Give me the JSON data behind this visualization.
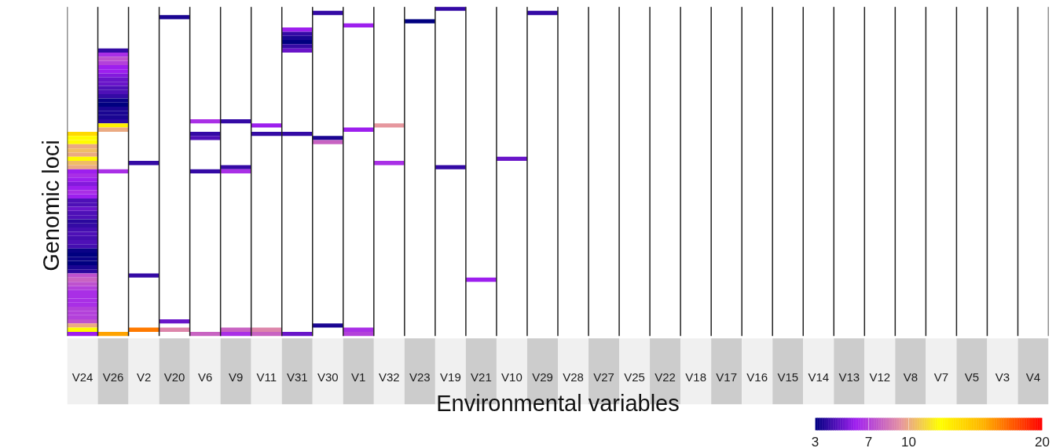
{
  "chart_data": {
    "type": "heatmap",
    "xlabel": "Environmental variables",
    "ylabel": "Genomic loci",
    "categories": [
      "V24",
      "V26",
      "V2",
      "V20",
      "V6",
      "V9",
      "V11",
      "V31",
      "V30",
      "V1",
      "V32",
      "V23",
      "V19",
      "V21",
      "V10",
      "V29",
      "V28",
      "V27",
      "V25",
      "V22",
      "V18",
      "V17",
      "V16",
      "V15",
      "V14",
      "V13",
      "V12",
      "V8",
      "V7",
      "V5",
      "V3",
      "V4"
    ],
    "y_categories": [
      null,
      null,
      null,
      null,
      null,
      null,
      null,
      null,
      null,
      null,
      null,
      null,
      null,
      null,
      null,
      null,
      null,
      null,
      null,
      null,
      null,
      null,
      null,
      null,
      null,
      null,
      null,
      null,
      null,
      null,
      null,
      null,
      null,
      null,
      null,
      null,
      null,
      null,
      null,
      null,
      null,
      null,
      null,
      null,
      null,
      null,
      null,
      null,
      null,
      null,
      null,
      null,
      null,
      null,
      null,
      null,
      null,
      null,
      null,
      null,
      null,
      null,
      null,
      null,
      null,
      null,
      null,
      null,
      null,
      null,
      null,
      null,
      null,
      null,
      null,
      null,
      null,
      null,
      null
    ],
    "tick_labels": "x",
    "clim": [
      3,
      20
    ],
    "cticks": [
      3,
      7,
      10,
      20
    ],
    "cells": [
      [
        null,
        null,
        null,
        null,
        null,
        null,
        null,
        null,
        null,
        null,
        null,
        null,
        4,
        null,
        null,
        null,
        null,
        null,
        null,
        null,
        null,
        null,
        null,
        null,
        null,
        null,
        null,
        null,
        null,
        null,
        null,
        null
      ],
      [
        null,
        null,
        null,
        null,
        null,
        null,
        null,
        null,
        4,
        null,
        null,
        null,
        null,
        null,
        null,
        4,
        null,
        null,
        null,
        null,
        null,
        null,
        null,
        null,
        null,
        null,
        null,
        null,
        null,
        null,
        null,
        null
      ],
      [
        null,
        null,
        null,
        3.5,
        null,
        null,
        null,
        null,
        null,
        null,
        null,
        null,
        null,
        null,
        null,
        null,
        null,
        null,
        null,
        null,
        null,
        null,
        null,
        null,
        null,
        null,
        null,
        null,
        null,
        null,
        null,
        null
      ],
      [
        null,
        null,
        null,
        null,
        null,
        null,
        null,
        null,
        null,
        null,
        null,
        3,
        null,
        null,
        null,
        null,
        null,
        null,
        null,
        null,
        null,
        null,
        null,
        null,
        null,
        null,
        null,
        null,
        null,
        null,
        null,
        null
      ],
      [
        null,
        null,
        null,
        null,
        null,
        null,
        null,
        null,
        null,
        6,
        null,
        null,
        null,
        null,
        null,
        null,
        null,
        null,
        null,
        null,
        null,
        null,
        null,
        null,
        null,
        null,
        null,
        null,
        null,
        null,
        null,
        null
      ],
      [
        null,
        null,
        null,
        null,
        null,
        null,
        null,
        6,
        null,
        null,
        null,
        null,
        null,
        null,
        null,
        null,
        null,
        null,
        null,
        null,
        null,
        null,
        null,
        null,
        null,
        null,
        null,
        null,
        null,
        null,
        null,
        null
      ],
      [
        null,
        null,
        null,
        null,
        null,
        null,
        null,
        4,
        null,
        null,
        null,
        null,
        null,
        null,
        null,
        null,
        null,
        null,
        null,
        null,
        null,
        null,
        null,
        null,
        null,
        null,
        null,
        null,
        null,
        null,
        null,
        null
      ],
      [
        null,
        null,
        null,
        null,
        null,
        null,
        null,
        3.5,
        null,
        null,
        null,
        null,
        null,
        null,
        null,
        null,
        null,
        null,
        null,
        null,
        null,
        null,
        null,
        null,
        null,
        null,
        null,
        null,
        null,
        null,
        null,
        null
      ],
      [
        null,
        null,
        null,
        null,
        null,
        null,
        null,
        3,
        null,
        null,
        null,
        null,
        null,
        null,
        null,
        null,
        null,
        null,
        null,
        null,
        null,
        null,
        null,
        null,
        null,
        null,
        null,
        null,
        null,
        null,
        null,
        null
      ],
      [
        null,
        null,
        null,
        null,
        null,
        null,
        null,
        4,
        null,
        null,
        null,
        null,
        null,
        null,
        null,
        null,
        null,
        null,
        null,
        null,
        null,
        null,
        null,
        null,
        null,
        null,
        null,
        null,
        null,
        null,
        null,
        null
      ],
      [
        null,
        4,
        null,
        null,
        null,
        null,
        null,
        5,
        null,
        null,
        null,
        null,
        null,
        null,
        null,
        null,
        null,
        null,
        null,
        null,
        null,
        null,
        null,
        null,
        null,
        null,
        null,
        null,
        null,
        null,
        null,
        null
      ],
      [
        null,
        6.5,
        null,
        null,
        null,
        null,
        null,
        null,
        null,
        null,
        null,
        null,
        null,
        null,
        null,
        null,
        null,
        null,
        null,
        null,
        null,
        null,
        null,
        null,
        null,
        null,
        null,
        null,
        null,
        null,
        null,
        null
      ],
      [
        null,
        7.5,
        null,
        null,
        null,
        null,
        null,
        null,
        null,
        null,
        null,
        null,
        null,
        null,
        null,
        null,
        null,
        null,
        null,
        null,
        null,
        null,
        null,
        null,
        null,
        null,
        null,
        null,
        null,
        null,
        null,
        null
      ],
      [
        null,
        7,
        null,
        null,
        null,
        null,
        null,
        null,
        null,
        null,
        null,
        null,
        null,
        null,
        null,
        null,
        null,
        null,
        null,
        null,
        null,
        null,
        null,
        null,
        null,
        null,
        null,
        null,
        null,
        null,
        null,
        null
      ],
      [
        null,
        6,
        null,
        null,
        null,
        null,
        null,
        null,
        null,
        null,
        null,
        null,
        null,
        null,
        null,
        null,
        null,
        null,
        null,
        null,
        null,
        null,
        null,
        null,
        null,
        null,
        null,
        null,
        null,
        null,
        null,
        null
      ],
      [
        null,
        6,
        null,
        null,
        null,
        null,
        null,
        null,
        null,
        null,
        null,
        null,
        null,
        null,
        null,
        null,
        null,
        null,
        null,
        null,
        null,
        null,
        null,
        null,
        null,
        null,
        null,
        null,
        null,
        null,
        null,
        null
      ],
      [
        null,
        5.5,
        null,
        null,
        null,
        null,
        null,
        null,
        null,
        null,
        null,
        null,
        null,
        null,
        null,
        null,
        null,
        null,
        null,
        null,
        null,
        null,
        null,
        null,
        null,
        null,
        null,
        null,
        null,
        null,
        null,
        null
      ],
      [
        null,
        5,
        null,
        null,
        null,
        null,
        null,
        null,
        null,
        null,
        null,
        null,
        null,
        null,
        null,
        null,
        null,
        null,
        null,
        null,
        null,
        null,
        null,
        null,
        null,
        null,
        null,
        null,
        null,
        null,
        null,
        null
      ],
      [
        null,
        5,
        null,
        null,
        null,
        null,
        null,
        null,
        null,
        null,
        null,
        null,
        null,
        null,
        null,
        null,
        null,
        null,
        null,
        null,
        null,
        null,
        null,
        null,
        null,
        null,
        null,
        null,
        null,
        null,
        null,
        null
      ],
      [
        null,
        4.5,
        null,
        null,
        null,
        null,
        null,
        null,
        null,
        null,
        null,
        null,
        null,
        null,
        null,
        null,
        null,
        null,
        null,
        null,
        null,
        null,
        null,
        null,
        null,
        null,
        null,
        null,
        null,
        null,
        null,
        null
      ],
      [
        null,
        4.5,
        null,
        null,
        null,
        null,
        null,
        null,
        null,
        null,
        null,
        null,
        null,
        null,
        null,
        null,
        null,
        null,
        null,
        null,
        null,
        null,
        null,
        null,
        null,
        null,
        null,
        null,
        null,
        null,
        null,
        null
      ],
      [
        null,
        4,
        null,
        null,
        null,
        null,
        null,
        null,
        null,
        null,
        null,
        null,
        null,
        null,
        null,
        null,
        null,
        null,
        null,
        null,
        null,
        null,
        null,
        null,
        null,
        null,
        null,
        null,
        null,
        null,
        null,
        null
      ],
      [
        null,
        3.2,
        null,
        null,
        null,
        null,
        null,
        null,
        null,
        null,
        null,
        null,
        null,
        null,
        null,
        null,
        null,
        null,
        null,
        null,
        null,
        null,
        null,
        null,
        null,
        null,
        null,
        null,
        null,
        null,
        null,
        null
      ],
      [
        null,
        3,
        null,
        null,
        null,
        null,
        null,
        null,
        null,
        null,
        null,
        null,
        null,
        null,
        null,
        null,
        null,
        null,
        null,
        null,
        null,
        null,
        null,
        null,
        null,
        null,
        null,
        null,
        null,
        null,
        null,
        null
      ],
      [
        null,
        3.5,
        null,
        null,
        null,
        null,
        null,
        null,
        null,
        null,
        null,
        null,
        null,
        null,
        null,
        null,
        null,
        null,
        null,
        null,
        null,
        null,
        null,
        null,
        null,
        null,
        null,
        null,
        null,
        null,
        null,
        null
      ],
      [
        null,
        3.5,
        null,
        null,
        null,
        null,
        null,
        null,
        null,
        null,
        null,
        null,
        null,
        null,
        null,
        null,
        null,
        null,
        null,
        null,
        null,
        null,
        null,
        null,
        null,
        null,
        null,
        null,
        null,
        null,
        null,
        null
      ],
      [
        null,
        3.5,
        null,
        null,
        null,
        null,
        null,
        null,
        null,
        null,
        null,
        null,
        null,
        null,
        null,
        null,
        null,
        null,
        null,
        null,
        null,
        null,
        null,
        null,
        null,
        null,
        null,
        null,
        null,
        null,
        null,
        null
      ],
      [
        null,
        3.8,
        null,
        null,
        6.5,
        4,
        null,
        null,
        null,
        null,
        null,
        null,
        null,
        null,
        null,
        null,
        null,
        null,
        null,
        null,
        null,
        null,
        null,
        null,
        null,
        null,
        null,
        null,
        null,
        null,
        null,
        null
      ],
      [
        null,
        13,
        null,
        null,
        null,
        null,
        6,
        null,
        null,
        null,
        9.5,
        null,
        null,
        null,
        null,
        null,
        null,
        null,
        null,
        null,
        null,
        null,
        null,
        null,
        null,
        null,
        null,
        null,
        null,
        null,
        null,
        null
      ],
      [
        null,
        10,
        null,
        null,
        null,
        null,
        null,
        null,
        null,
        6,
        null,
        null,
        null,
        null,
        null,
        null,
        null,
        null,
        null,
        null,
        null,
        null,
        null,
        null,
        null,
        null,
        null,
        null,
        null,
        null,
        null,
        null
      ],
      [
        14,
        null,
        null,
        null,
        4,
        null,
        4,
        4,
        null,
        null,
        null,
        null,
        null,
        null,
        null,
        null,
        null,
        null,
        null,
        null,
        null,
        null,
        null,
        null,
        null,
        null,
        null,
        null,
        null,
        null,
        null,
        null
      ],
      [
        12.5,
        null,
        null,
        null,
        4.5,
        null,
        null,
        null,
        3.5,
        null,
        null,
        null,
        null,
        null,
        null,
        null,
        null,
        null,
        null,
        null,
        null,
        null,
        null,
        null,
        null,
        null,
        null,
        null,
        null,
        null,
        null,
        null
      ],
      [
        12.5,
        null,
        null,
        null,
        null,
        null,
        null,
        null,
        8,
        null,
        null,
        null,
        null,
        null,
        null,
        null,
        null,
        null,
        null,
        null,
        null,
        null,
        null,
        null,
        null,
        null,
        null,
        null,
        null,
        null,
        null,
        null
      ],
      [
        10,
        null,
        null,
        null,
        null,
        null,
        null,
        null,
        null,
        null,
        null,
        null,
        null,
        null,
        null,
        null,
        null,
        null,
        null,
        null,
        null,
        null,
        null,
        null,
        null,
        null,
        null,
        null,
        null,
        null,
        null,
        null
      ],
      [
        10.5,
        null,
        null,
        null,
        null,
        null,
        null,
        null,
        null,
        null,
        null,
        null,
        null,
        null,
        null,
        null,
        null,
        null,
        null,
        null,
        null,
        null,
        null,
        null,
        null,
        null,
        null,
        null,
        null,
        null,
        null,
        null
      ],
      [
        10,
        null,
        null,
        null,
        null,
        null,
        null,
        null,
        null,
        null,
        null,
        null,
        null,
        null,
        null,
        null,
        null,
        null,
        null,
        null,
        null,
        null,
        null,
        null,
        null,
        null,
        null,
        null,
        null,
        null,
        null,
        null
      ],
      [
        12.5,
        null,
        null,
        null,
        null,
        null,
        null,
        null,
        null,
        null,
        null,
        null,
        null,
        null,
        5,
        null,
        null,
        null,
        null,
        null,
        null,
        null,
        null,
        null,
        null,
        null,
        null,
        null,
        null,
        null,
        null,
        null
      ],
      [
        10.5,
        null,
        4,
        null,
        null,
        null,
        null,
        null,
        null,
        null,
        6.5,
        null,
        null,
        null,
        null,
        null,
        null,
        null,
        null,
        null,
        null,
        null,
        null,
        null,
        null,
        null,
        null,
        null,
        null,
        null,
        null,
        null
      ],
      [
        10,
        null,
        null,
        null,
        null,
        4,
        null,
        null,
        null,
        null,
        null,
        null,
        4,
        null,
        null,
        null,
        null,
        null,
        null,
        null,
        null,
        null,
        null,
        null,
        null,
        null,
        null,
        null,
        null,
        null,
        null,
        null
      ],
      [
        6,
        6.5,
        null,
        null,
        4,
        6.5,
        null,
        null,
        null,
        null,
        null,
        null,
        null,
        null,
        null,
        null,
        null,
        null,
        null,
        null,
        null,
        null,
        null,
        null,
        null,
        null,
        null,
        null,
        null,
        null,
        null,
        null
      ],
      [
        6.5,
        null,
        null,
        null,
        null,
        null,
        null,
        null,
        null,
        null,
        null,
        null,
        null,
        null,
        null,
        null,
        null,
        null,
        null,
        null,
        null,
        null,
        null,
        null,
        null,
        null,
        null,
        null,
        null,
        null,
        null,
        null
      ],
      [
        6,
        null,
        null,
        null,
        null,
        null,
        null,
        null,
        null,
        null,
        null,
        null,
        null,
        null,
        null,
        null,
        null,
        null,
        null,
        null,
        null,
        null,
        null,
        null,
        null,
        null,
        null,
        null,
        null,
        null,
        null,
        null
      ],
      [
        5.5,
        null,
        null,
        null,
        null,
        null,
        null,
        null,
        null,
        null,
        null,
        null,
        null,
        null,
        null,
        null,
        null,
        null,
        null,
        null,
        null,
        null,
        null,
        null,
        null,
        null,
        null,
        null,
        null,
        null,
        null,
        null
      ],
      [
        6,
        null,
        null,
        null,
        null,
        null,
        null,
        null,
        null,
        null,
        null,
        null,
        null,
        null,
        null,
        null,
        null,
        null,
        null,
        null,
        null,
        null,
        null,
        null,
        null,
        null,
        null,
        null,
        null,
        null,
        null,
        null
      ],
      [
        6.5,
        null,
        null,
        null,
        null,
        null,
        null,
        null,
        null,
        null,
        null,
        null,
        null,
        null,
        null,
        null,
        null,
        null,
        null,
        null,
        null,
        null,
        null,
        null,
        null,
        null,
        null,
        null,
        null,
        null,
        null,
        null
      ],
      [
        6,
        null,
        null,
        null,
        null,
        null,
        null,
        null,
        null,
        null,
        null,
        null,
        null,
        null,
        null,
        null,
        null,
        null,
        null,
        null,
        null,
        null,
        null,
        null,
        null,
        null,
        null,
        null,
        null,
        null,
        null,
        null
      ],
      [
        4.5,
        null,
        null,
        null,
        null,
        null,
        null,
        null,
        null,
        null,
        null,
        null,
        null,
        null,
        null,
        null,
        null,
        null,
        null,
        null,
        null,
        null,
        null,
        null,
        null,
        null,
        null,
        null,
        null,
        null,
        null,
        null
      ],
      [
        4.5,
        null,
        null,
        null,
        null,
        null,
        null,
        null,
        null,
        null,
        null,
        null,
        null,
        null,
        null,
        null,
        null,
        null,
        null,
        null,
        null,
        null,
        null,
        null,
        null,
        null,
        null,
        null,
        null,
        null,
        null,
        null
      ],
      [
        5,
        null,
        null,
        null,
        null,
        null,
        null,
        null,
        null,
        null,
        null,
        null,
        null,
        null,
        null,
        null,
        null,
        null,
        null,
        null,
        null,
        null,
        null,
        null,
        null,
        null,
        null,
        null,
        null,
        null,
        null,
        null
      ],
      [
        4.5,
        null,
        null,
        null,
        null,
        null,
        null,
        null,
        null,
        null,
        null,
        null,
        null,
        null,
        null,
        null,
        null,
        null,
        null,
        null,
        null,
        null,
        null,
        null,
        null,
        null,
        null,
        null,
        null,
        null,
        null,
        null
      ],
      [
        4.5,
        null,
        null,
        null,
        null,
        null,
        null,
        null,
        null,
        null,
        null,
        null,
        null,
        null,
        null,
        null,
        null,
        null,
        null,
        null,
        null,
        null,
        null,
        null,
        null,
        null,
        null,
        null,
        null,
        null,
        null,
        null
      ],
      [
        3.8,
        null,
        null,
        null,
        null,
        null,
        null,
        null,
        null,
        null,
        null,
        null,
        null,
        null,
        null,
        null,
        null,
        null,
        null,
        null,
        null,
        null,
        null,
        null,
        null,
        null,
        null,
        null,
        null,
        null,
        null,
        null
      ],
      [
        4,
        null,
        null,
        null,
        null,
        null,
        null,
        null,
        null,
        null,
        null,
        null,
        null,
        null,
        null,
        null,
        null,
        null,
        null,
        null,
        null,
        null,
        null,
        null,
        null,
        null,
        null,
        null,
        null,
        null,
        null,
        null
      ],
      [
        4.3,
        null,
        null,
        null,
        null,
        null,
        null,
        null,
        null,
        null,
        null,
        null,
        null,
        null,
        null,
        null,
        null,
        null,
        null,
        null,
        null,
        null,
        null,
        null,
        null,
        null,
        null,
        null,
        null,
        null,
        null,
        null
      ],
      [
        4.5,
        null,
        null,
        null,
        null,
        null,
        null,
        null,
        null,
        null,
        null,
        null,
        null,
        null,
        null,
        null,
        null,
        null,
        null,
        null,
        null,
        null,
        null,
        null,
        null,
        null,
        null,
        null,
        null,
        null,
        null,
        null
      ],
      [
        4.3,
        null,
        null,
        null,
        null,
        null,
        null,
        null,
        null,
        null,
        null,
        null,
        null,
        null,
        null,
        null,
        null,
        null,
        null,
        null,
        null,
        null,
        null,
        null,
        null,
        null,
        null,
        null,
        null,
        null,
        null,
        null
      ],
      [
        4.5,
        null,
        null,
        null,
        null,
        null,
        null,
        null,
        null,
        null,
        null,
        null,
        null,
        null,
        null,
        null,
        null,
        null,
        null,
        null,
        null,
        null,
        null,
        null,
        null,
        null,
        null,
        null,
        null,
        null,
        null,
        null
      ],
      [
        4.3,
        null,
        null,
        null,
        null,
        null,
        null,
        null,
        null,
        null,
        null,
        null,
        null,
        null,
        null,
        null,
        null,
        null,
        null,
        null,
        null,
        null,
        null,
        null,
        null,
        null,
        null,
        null,
        null,
        null,
        null,
        null
      ],
      [
        3.2,
        null,
        null,
        null,
        null,
        null,
        null,
        null,
        null,
        null,
        null,
        null,
        null,
        null,
        null,
        null,
        null,
        null,
        null,
        null,
        null,
        null,
        null,
        null,
        null,
        null,
        null,
        null,
        null,
        null,
        null,
        null
      ],
      [
        3,
        null,
        null,
        null,
        null,
        null,
        null,
        null,
        null,
        null,
        null,
        null,
        null,
        null,
        null,
        null,
        null,
        null,
        null,
        null,
        null,
        null,
        null,
        null,
        null,
        null,
        null,
        null,
        null,
        null,
        null,
        null
      ],
      [
        3.2,
        null,
        null,
        null,
        null,
        null,
        null,
        null,
        null,
        null,
        null,
        null,
        null,
        null,
        null,
        null,
        null,
        null,
        null,
        null,
        null,
        null,
        null,
        null,
        null,
        null,
        null,
        null,
        null,
        null,
        null,
        null
      ],
      [
        3,
        null,
        null,
        null,
        null,
        null,
        null,
        null,
        null,
        null,
        null,
        null,
        null,
        null,
        null,
        null,
        null,
        null,
        null,
        null,
        null,
        null,
        null,
        null,
        null,
        null,
        null,
        null,
        null,
        null,
        null,
        null
      ],
      [
        3.5,
        null,
        null,
        null,
        null,
        null,
        null,
        null,
        null,
        null,
        null,
        null,
        null,
        null,
        null,
        null,
        null,
        null,
        null,
        null,
        null,
        null,
        null,
        null,
        null,
        null,
        null,
        null,
        null,
        null,
        null,
        null
      ],
      [
        3.8,
        null,
        null,
        null,
        null,
        null,
        null,
        null,
        null,
        null,
        null,
        null,
        null,
        null,
        null,
        null,
        null,
        null,
        null,
        null,
        null,
        null,
        null,
        null,
        null,
        null,
        null,
        null,
        null,
        null,
        null,
        null
      ],
      [
        7.5,
        null,
        4,
        null,
        null,
        null,
        null,
        null,
        null,
        null,
        null,
        null,
        null,
        null,
        null,
        null,
        null,
        null,
        null,
        null,
        null,
        null,
        null,
        null,
        null,
        null,
        null,
        null,
        null,
        null,
        null,
        null
      ],
      [
        8,
        null,
        null,
        null,
        null,
        null,
        null,
        null,
        null,
        null,
        null,
        null,
        null,
        6,
        null,
        null,
        null,
        null,
        null,
        null,
        null,
        null,
        null,
        null,
        null,
        null,
        null,
        null,
        null,
        null,
        null,
        null
      ],
      [
        7.5,
        null,
        null,
        null,
        null,
        null,
        null,
        null,
        null,
        null,
        null,
        null,
        null,
        null,
        null,
        null,
        null,
        null,
        null,
        null,
        null,
        null,
        null,
        null,
        null,
        null,
        null,
        null,
        null,
        null,
        null,
        null
      ],
      [
        7,
        null,
        null,
        null,
        null,
        null,
        null,
        null,
        null,
        null,
        null,
        null,
        null,
        null,
        null,
        null,
        null,
        null,
        null,
        null,
        null,
        null,
        null,
        null,
        null,
        null,
        null,
        null,
        null,
        null,
        null,
        null
      ],
      [
        6.5,
        null,
        null,
        null,
        null,
        null,
        null,
        null,
        null,
        null,
        null,
        null,
        null,
        null,
        null,
        null,
        null,
        null,
        null,
        null,
        null,
        null,
        null,
        null,
        null,
        null,
        null,
        null,
        null,
        null,
        null,
        null
      ],
      [
        6.5,
        null,
        null,
        null,
        null,
        null,
        null,
        null,
        null,
        null,
        null,
        null,
        null,
        null,
        null,
        null,
        null,
        null,
        null,
        null,
        null,
        null,
        null,
        null,
        null,
        null,
        null,
        null,
        null,
        null,
        null,
        null
      ],
      [
        6.5,
        null,
        null,
        null,
        null,
        null,
        null,
        null,
        null,
        null,
        null,
        null,
        null,
        null,
        null,
        null,
        null,
        null,
        null,
        null,
        null,
        null,
        null,
        null,
        null,
        null,
        null,
        null,
        null,
        null,
        null,
        null
      ],
      [
        6.5,
        null,
        null,
        null,
        null,
        null,
        null,
        null,
        null,
        null,
        null,
        null,
        null,
        null,
        null,
        null,
        null,
        null,
        null,
        null,
        null,
        null,
        null,
        null,
        null,
        null,
        null,
        null,
        null,
        null,
        null,
        null
      ],
      [
        7,
        null,
        null,
        null,
        null,
        null,
        null,
        null,
        null,
        null,
        null,
        null,
        null,
        null,
        null,
        null,
        null,
        null,
        null,
        null,
        null,
        null,
        null,
        null,
        null,
        null,
        null,
        null,
        null,
        null,
        null,
        null
      ],
      [
        7,
        null,
        null,
        null,
        null,
        null,
        null,
        null,
        null,
        null,
        null,
        null,
        null,
        null,
        null,
        null,
        null,
        null,
        null,
        null,
        null,
        null,
        null,
        null,
        null,
        null,
        null,
        null,
        null,
        null,
        null,
        null
      ],
      [
        7,
        null,
        null,
        null,
        null,
        null,
        null,
        null,
        null,
        null,
        null,
        null,
        null,
        null,
        null,
        null,
        null,
        null,
        null,
        null,
        null,
        null,
        null,
        null,
        null,
        null,
        null,
        null,
        null,
        null,
        null,
        null
      ],
      [
        7.5,
        null,
        null,
        5,
        null,
        null,
        null,
        null,
        null,
        null,
        null,
        null,
        null,
        null,
        null,
        null,
        null,
        null,
        null,
        null,
        null,
        null,
        null,
        null,
        null,
        null,
        null,
        null,
        null,
        null,
        null,
        null
      ],
      [
        10,
        null,
        null,
        null,
        null,
        null,
        null,
        null,
        3.5,
        null,
        null,
        null,
        null,
        null,
        null,
        null,
        null,
        null,
        null,
        null,
        null,
        null,
        null,
        null,
        null,
        null,
        null,
        null,
        null,
        null,
        null,
        null
      ],
      [
        12.5,
        null,
        17,
        9,
        null,
        8,
        9,
        null,
        null,
        6.5,
        null,
        null,
        null,
        null,
        null,
        null,
        null,
        null,
        null,
        null,
        null,
        null,
        null,
        null,
        null,
        null,
        null,
        null,
        null,
        null,
        null,
        null
      ],
      [
        6,
        16,
        null,
        null,
        8,
        6.5,
        8,
        5,
        null,
        7,
        null,
        null,
        null,
        null,
        null,
        null,
        null,
        null,
        null,
        null,
        null,
        null,
        null,
        null,
        null,
        null,
        null,
        null,
        null,
        null,
        null,
        null
      ]
    ]
  }
}
